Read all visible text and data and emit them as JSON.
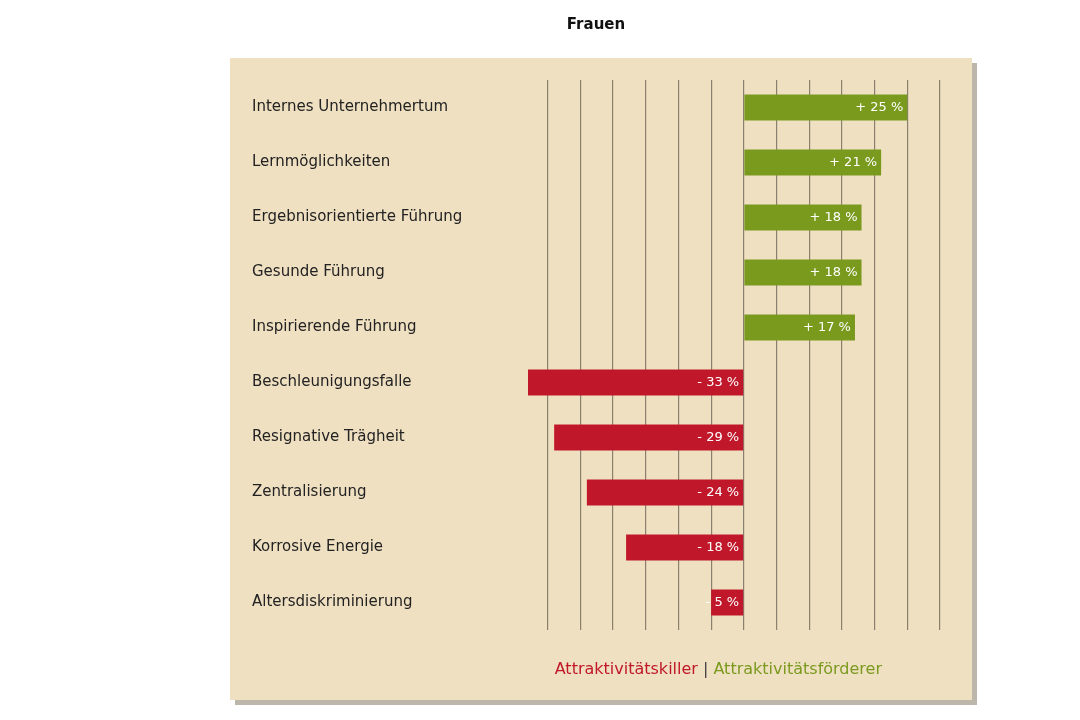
{
  "chart_data": {
    "type": "bar",
    "orientation": "horizontal",
    "stacked": true,
    "title": "Frauen",
    "categories": [
      "Internes Unternehmertum",
      "Lernmöglichkeiten",
      "Ergebnisorientierte Führung",
      "Gesunde Führung",
      "Inspirierende Führung",
      "Beschleunigungsfalle",
      "Resignative Trägheit",
      "Zentralisierung",
      "Korrosive Energie",
      "Altersdiskriminierung"
    ],
    "series": [
      {
        "name": "Attraktivitätskiller",
        "color": "#c0182a",
        "values": [
          null,
          null,
          null,
          null,
          null,
          -33,
          -29,
          -24,
          -18,
          -5
        ],
        "value_labels": [
          null,
          null,
          null,
          null,
          null,
          "- 33 %",
          "- 29 %",
          "- 24 %",
          "- 18 %",
          "- 5 %"
        ]
      },
      {
        "name": "Attraktivitätsförderer",
        "color": "#7a9a1e",
        "values": [
          25,
          21,
          18,
          18,
          17,
          null,
          null,
          null,
          null,
          null
        ],
        "value_labels": [
          "+ 25 %",
          "+ 21 %",
          "+ 18 %",
          "+ 18 %",
          "+ 17 %",
          null,
          null,
          null,
          null,
          null
        ]
      }
    ],
    "annotations": [
      "|"
    ],
    "xticks": [
      {
        "value": -30,
        "label": null
      },
      {
        "value": -25,
        "label": null
      },
      {
        "value": -20,
        "label": null
      },
      {
        "value": -15,
        "label": null
      },
      {
        "value": -10,
        "label": null
      },
      {
        "value": -5,
        "label": null
      },
      {
        "value": 0,
        "label": null
      },
      {
        "value": 5,
        "label": null
      },
      {
        "value": 10,
        "label": null
      },
      {
        "value": 15,
        "label": null
      },
      {
        "value": 20,
        "label": null
      },
      {
        "value": 25,
        "label": null
      },
      {
        "value": 30,
        "label": null
      }
    ],
    "tick_labels": "y",
    "grid": "x",
    "legend": "bottom right"
  }
}
